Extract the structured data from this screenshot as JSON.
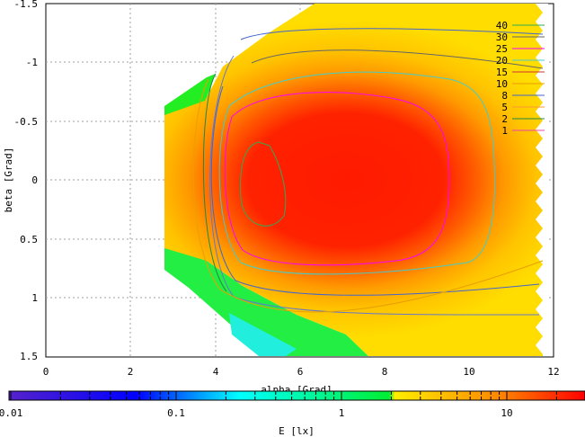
{
  "chart_data": {
    "type": "heatmap",
    "title": "",
    "xlabel": "alpha [Grad]",
    "ylabel": "beta [Grad]",
    "xlim": [
      0,
      12
    ],
    "ylim": [
      1.5,
      -1.5
    ],
    "x_ticks": [
      "0",
      "2",
      "4",
      "6",
      "8",
      "10",
      "12"
    ],
    "y_ticks": [
      "-1.5",
      "-1",
      "-0.5",
      "0",
      "0.5",
      "1",
      "1.5"
    ],
    "grid": true,
    "colorbar": {
      "label": "E [lx]",
      "scale": "log",
      "range": [
        0.01,
        30
      ],
      "tick_labels": [
        "0.01",
        "0.1",
        "1",
        "10"
      ],
      "colors": [
        "#5522cc",
        "#0000ff",
        "#00ffff",
        "#00ee33",
        "#ffee00",
        "#ff0000"
      ]
    },
    "contour_levels": [
      {
        "label": "40",
        "color": "#33aa55"
      },
      {
        "label": "30",
        "color": "#666666"
      },
      {
        "label": "25",
        "color": "#ff00ff"
      },
      {
        "label": "20",
        "color": "#44cccc"
      },
      {
        "label": "15",
        "color": "#cc3333"
      },
      {
        "label": "10",
        "color": "#e8a000"
      },
      {
        "label": "8",
        "color": "#4466cc"
      },
      {
        "label": "5",
        "color": "#ff9933"
      },
      {
        "label": "2",
        "color": "#228844"
      },
      {
        "label": "1",
        "color": "#ee44aa"
      }
    ],
    "legend_position": "top-right"
  }
}
